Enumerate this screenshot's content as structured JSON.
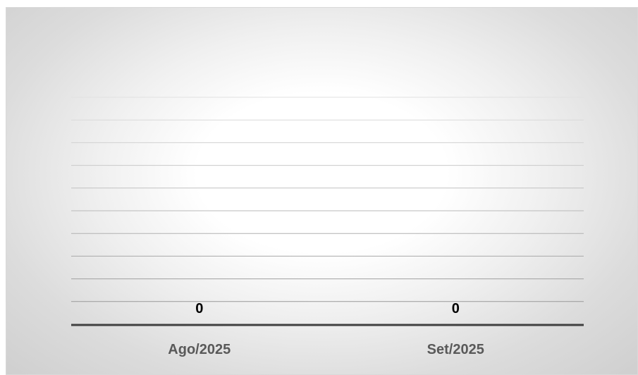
{
  "chart_data": {
    "type": "bar",
    "categories": [
      "Ago/2025",
      "Set/2025"
    ],
    "values": [
      0,
      0
    ],
    "data_labels": [
      "0",
      "0"
    ],
    "title": "",
    "xlabel": "",
    "ylabel": "",
    "grid": true,
    "legend": "none",
    "colors": {
      "gridline": "#d0d0d0",
      "axis": "#404040",
      "category_label": "#595959",
      "data_label": "#000000"
    }
  }
}
